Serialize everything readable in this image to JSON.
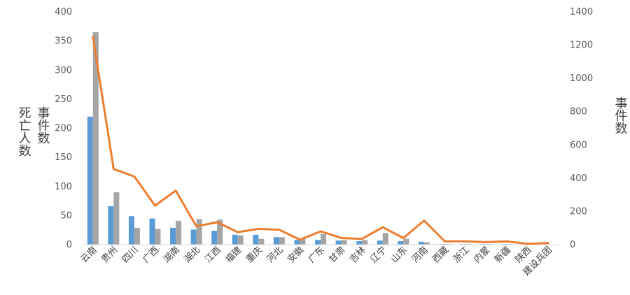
{
  "chart_data": {
    "type": "bar",
    "categories": [
      "云南",
      "贵州",
      "四川",
      "广西",
      "湖南",
      "湖北",
      "江西",
      "福建",
      "重庆",
      "河北",
      "安徽",
      "广东",
      "甘肃",
      "吉林",
      "辽宁",
      "山东",
      "河南",
      "西藏",
      "浙江",
      "内蒙",
      "新疆",
      "陕西",
      "建设兵团"
    ],
    "series": [
      {
        "values": [
          220,
          66,
          49,
          45,
          29,
          26,
          24,
          17,
          17,
          13,
          8,
          8,
          7,
          6,
          7,
          6,
          5,
          1,
          1,
          1,
          1,
          0,
          0
        ],
        "color": "#5B9BD5",
        "kind": "bar",
        "axis": "left"
      },
      {
        "values": [
          365,
          90,
          29,
          27,
          41,
          44,
          43,
          16,
          10,
          13,
          10,
          18,
          8,
          8,
          20,
          10,
          4,
          1,
          1,
          1,
          1,
          0,
          0
        ],
        "color": "#A5A5A5",
        "kind": "bar",
        "axis": "left"
      },
      {
        "values": [
          1250,
          455,
          410,
          235,
          325,
          110,
          135,
          75,
          95,
          90,
          30,
          80,
          40,
          35,
          105,
          40,
          145,
          20,
          20,
          15,
          20,
          5,
          10
        ],
        "color": "#ED7D31",
        "kind": "line",
        "axis": "right"
      }
    ],
    "left_axis": {
      "title_lines": [
        "死亡人数",
        "事件数"
      ],
      "ylim": [
        0,
        400
      ],
      "ticks": [
        0,
        50,
        100,
        150,
        200,
        250,
        300,
        350,
        400
      ]
    },
    "right_axis": {
      "title": "事件数",
      "ylim": [
        0,
        1400
      ],
      "ticks": [
        0,
        200,
        400,
        600,
        800,
        1000,
        1200,
        1400
      ]
    },
    "grid": false,
    "legend": "none"
  }
}
